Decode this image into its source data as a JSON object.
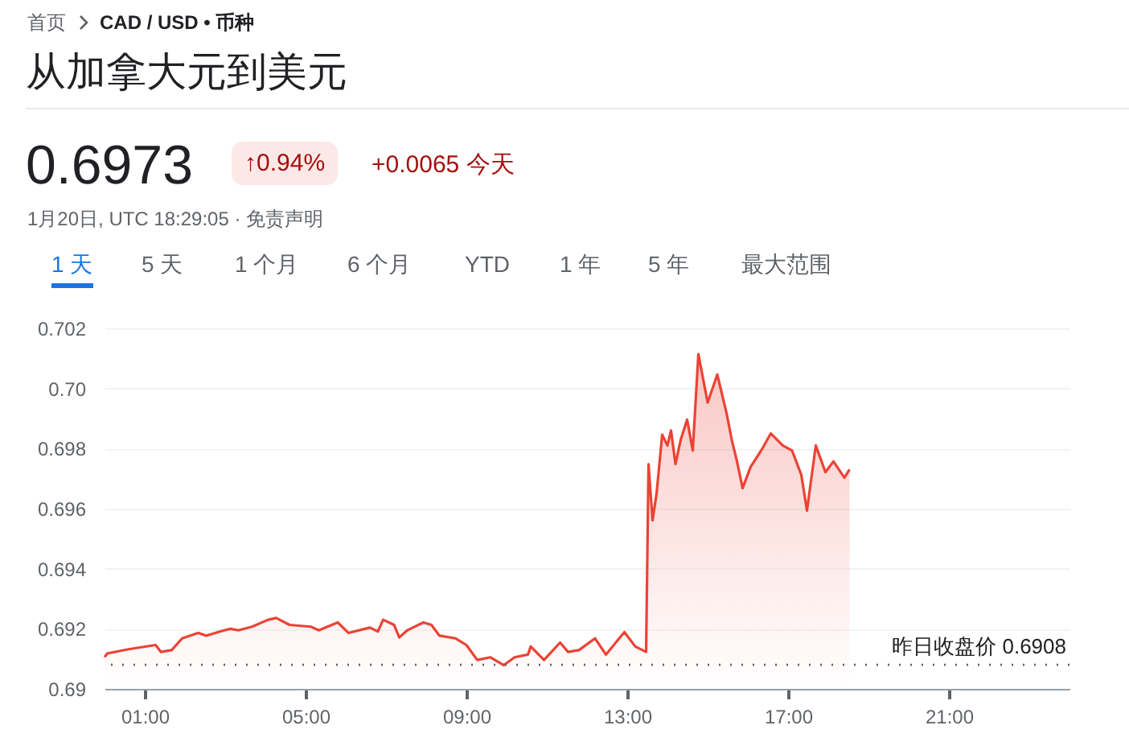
{
  "chart_data": {
    "type": "area",
    "title": "从加拿大元到美元",
    "annotations": [
      "首页",
      "CAD / USD • 币种",
      "0.6973",
      "↑0.94%",
      "+0.0065 今天",
      "1月20日, UTC 18:29:05 · 免责声明",
      "1 天",
      "5 天",
      "1 个月",
      "6 个月",
      "YTD",
      "1 年",
      "5 年",
      "最大范围"
    ],
    "x": [
      0,
      0.07,
      0.6,
      1.27,
      1.4,
      1.67,
      1.93,
      2.33,
      2.53,
      2.87,
      3.13,
      3.33,
      3.67,
      4.07,
      4.27,
      4.6,
      5.13,
      5.33,
      5.8,
      6.07,
      6.6,
      6.8,
      6.93,
      7.2,
      7.33,
      7.53,
      7.93,
      8.13,
      8.33,
      8.73,
      9.0,
      9.27,
      9.6,
      9.93,
      10.2,
      10.53,
      10.6,
      10.93,
      11.33,
      11.53,
      11.8,
      12.2,
      12.47,
      12.93,
      13.2,
      13.47,
      13.53,
      13.63,
      13.73,
      13.87,
      14.0,
      14.09,
      14.2,
      14.33,
      14.49,
      14.63,
      14.77,
      15.0,
      15.24,
      15.47,
      15.6,
      15.73,
      15.87,
      16.07,
      16.33,
      16.57,
      16.87,
      17.1,
      17.33,
      17.47,
      17.69,
      17.93,
      18.13,
      18.4,
      18.53
    ],
    "series": [
      {
        "color": "#ea4335",
        "values": [
          0.69106,
          0.69118,
          0.69132,
          0.69146,
          0.69123,
          0.69129,
          0.69168,
          0.69186,
          0.69177,
          0.69191,
          0.692,
          0.69195,
          0.69207,
          0.6923,
          0.69236,
          0.69213,
          0.69207,
          0.69195,
          0.69221,
          0.69186,
          0.69204,
          0.69191,
          0.6923,
          0.69213,
          0.69171,
          0.69195,
          0.69221,
          0.69213,
          0.69177,
          0.69168,
          0.69146,
          0.69096,
          0.69105,
          0.69079,
          0.69105,
          0.69114,
          0.69141,
          0.69096,
          0.69154,
          0.69123,
          0.69129,
          0.69168,
          0.69114,
          0.69189,
          0.69141,
          0.69123,
          0.69748,
          0.69561,
          0.6965,
          0.69846,
          0.6981,
          0.6986,
          0.69748,
          0.69829,
          0.69896,
          0.69793,
          0.70114,
          0.69953,
          0.70046,
          0.69918,
          0.69829,
          0.69757,
          0.69668,
          0.69739,
          0.69793,
          0.6985,
          0.6981,
          0.69793,
          0.69712,
          0.69593,
          0.6981,
          0.69721,
          0.69757,
          0.69703,
          0.6973
        ]
      }
    ],
    "xlim": [
      0,
      24
    ],
    "xticks": [
      {
        "value": 1,
        "label": "01:00"
      },
      {
        "value": 5,
        "label": "05:00"
      },
      {
        "value": 9,
        "label": "09:00"
      },
      {
        "value": 13,
        "label": "13:00"
      },
      {
        "value": 17,
        "label": "17:00"
      },
      {
        "value": 21,
        "label": "21:00"
      }
    ],
    "ylim": [
      0.69,
      0.702
    ],
    "yticks": [
      0.69,
      0.692,
      0.694,
      0.696,
      0.698,
      {
        "value": 0.7,
        "label": "0.70"
      },
      0.702
    ],
    "grid": "y",
    "ref_lines": [
      {
        "axis": "y",
        "value": 0.6908,
        "label": "昨日收盘价 0.6908",
        "color": "#5f6368",
        "line_style": "dotted"
      }
    ]
  }
}
